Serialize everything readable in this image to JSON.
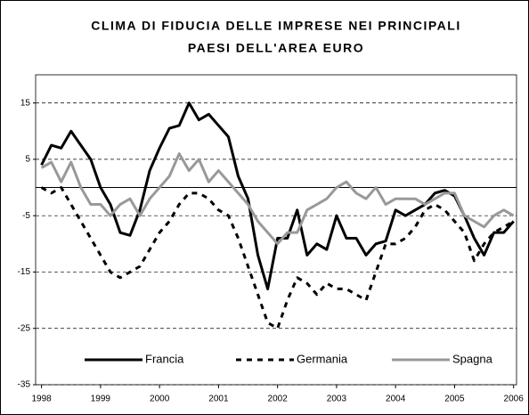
{
  "chart_data": {
    "type": "line",
    "title": [
      "CLIMA DI FIDUCIA DELLE IMPRESE NEI PRINCIPALI",
      "PAESI DELL'AREA EURO"
    ],
    "x": [
      1998,
      1998.1667,
      1998.3333,
      1998.5,
      1998.6667,
      1998.8333,
      1999,
      1999.1667,
      1999.3333,
      1999.5,
      1999.6667,
      1999.8333,
      2000,
      2000.1667,
      2000.3333,
      2000.5,
      2000.6667,
      2000.8333,
      2001,
      2001.1667,
      2001.3333,
      2001.5,
      2001.6667,
      2001.8333,
      2002,
      2002.1667,
      2002.3333,
      2002.5,
      2002.6667,
      2002.8333,
      2003,
      2003.1667,
      2003.3333,
      2003.5,
      2003.6667,
      2003.8333,
      2004,
      2004.1667,
      2004.3333,
      2004.5,
      2004.6667,
      2004.8333,
      2005,
      2005.1667,
      2005.3333,
      2005.5,
      2005.6667,
      2005.8333,
      2006
    ],
    "series": [
      {
        "name": "Francia",
        "color": "#000000",
        "dash": false,
        "values": [
          4,
          7.5,
          7,
          10,
          7.5,
          5,
          0,
          -3,
          -8,
          -8.5,
          -4,
          3,
          7,
          10.5,
          11,
          15,
          12,
          13,
          11,
          9,
          2,
          -2,
          -12,
          -18,
          -9,
          -9,
          -4,
          -12,
          -10,
          -11,
          -5,
          -9,
          -9,
          -12,
          -10,
          -9.5,
          -4,
          -5,
          -4,
          -3,
          -1,
          -0.5,
          -1.5,
          -5,
          -9,
          -12,
          -8,
          -8,
          -6
        ]
      },
      {
        "name": "Germania",
        "color": "#000000",
        "dash": true,
        "values": [
          0,
          -1,
          0,
          -3,
          -6,
          -9,
          -12,
          -15,
          -16,
          -15,
          -14,
          -11,
          -8,
          -6,
          -3,
          -1,
          -1,
          -2,
          -4,
          -5,
          -9,
          -14,
          -19,
          -24,
          -25,
          -20,
          -16,
          -17,
          -19,
          -17,
          -18,
          -18,
          -19,
          -20,
          -15,
          -10,
          -10,
          -9,
          -7,
          -4,
          -3,
          -4,
          -6,
          -8,
          -13,
          -10,
          -8,
          -7,
          -6
        ]
      },
      {
        "name": "Spagna",
        "color": "#999999",
        "dash": false,
        "values": [
          3.5,
          4.5,
          1,
          4.5,
          0,
          -3,
          -3,
          -5,
          -3,
          -2,
          -5,
          -2,
          0,
          2,
          6,
          3,
          5,
          1,
          3,
          1,
          -1,
          -3,
          -6,
          -8,
          -10,
          -8,
          -8,
          -4,
          -3,
          -2,
          0,
          1,
          -1,
          -2,
          0,
          -3,
          -2,
          -2,
          -2,
          -3,
          -2,
          -1,
          -1,
          -5,
          -6,
          -7,
          -5,
          -4,
          -5
        ]
      }
    ],
    "xlim": [
      1997.9,
      2006.05
    ],
    "xticks": [
      1998,
      1999,
      2000,
      2001,
      2002,
      2003,
      2004,
      2005,
      2006
    ],
    "ylim": [
      -35,
      20
    ],
    "yticks": [
      15,
      5,
      -5,
      -15,
      -25,
      -35
    ],
    "grid": true,
    "legend": "bottom"
  }
}
